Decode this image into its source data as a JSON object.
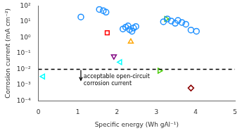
{
  "chart_data": {
    "type": "scatter",
    "xlabel": "Specific energy (Wh gAl⁻¹)",
    "ylabel": "Corrosion current (mA cm⁻²)",
    "log": "y",
    "grid": false,
    "xlim": [
      0,
      5
    ],
    "xticks": [
      0,
      1,
      2,
      3,
      4,
      5
    ],
    "ylim": [
      0.0001,
      100
    ],
    "yticks": [
      {
        "value": 0.0001,
        "label": "10⁻⁴"
      },
      {
        "value": 0.001,
        "label": "10⁻³"
      },
      {
        "value": 0.01,
        "label": "10⁻²"
      },
      {
        "value": 0.1,
        "label": "10⁻¹"
      },
      {
        "value": 1,
        "label": "10⁰"
      },
      {
        "value": 10,
        "label": "10¹"
      },
      {
        "value": 100,
        "label": "10²"
      }
    ],
    "series": [
      {
        "color": "#1e90ff",
        "marker": "circle",
        "x": [
          1.08,
          1.55,
          1.65,
          1.72,
          2.15,
          2.22,
          2.28,
          2.32,
          2.38,
          2.42,
          2.48,
          3.18,
          3.28,
          3.38,
          3.48,
          3.55,
          3.65,
          3.75,
          3.88,
          4.02
        ],
        "values": [
          20,
          60,
          50,
          40,
          3.5,
          4.5,
          5.5,
          3.2,
          2.5,
          4.0,
          5.0,
          10,
          15,
          11,
          8,
          12,
          9,
          7,
          3,
          2.5
        ]
      },
      {
        "color": "red",
        "marker": "square",
        "x": [
          1.75
        ],
        "values": [
          2.0
        ]
      },
      {
        "color": "orange",
        "marker": "triangle_up",
        "x": [
          2.35
        ],
        "values": [
          0.55
        ]
      },
      {
        "color": "purple",
        "marker": "triangle_down",
        "x": [
          1.92
        ],
        "values": [
          0.065
        ]
      },
      {
        "color": "cyan",
        "marker": "triangle_left",
        "x": [
          0.12
        ],
        "values": [
          0.0035
        ]
      },
      {
        "color": "cyan",
        "marker": "triangle_left",
        "x": [
          2.08
        ],
        "values": [
          0.028
        ]
      },
      {
        "color": "#44cc00",
        "marker": "triangle_right",
        "x": [
          3.25
        ],
        "values": [
          15
        ]
      },
      {
        "color": "#44cc00",
        "marker": "triangle_right",
        "x": [
          3.08
        ],
        "values": [
          0.008
        ]
      },
      {
        "color": "#8b0000",
        "marker": "diamond",
        "x": [
          3.88
        ],
        "values": [
          0.00065
        ]
      }
    ],
    "hline": {
      "y": 0.01,
      "color": "black",
      "line_style": "dashed"
    },
    "annotations": [
      {
        "text": "acceptable open-circuit\ncorrosion current",
        "x": 1.15,
        "y": 0.002
      }
    ],
    "arrow": {
      "x": 1.08,
      "y_start": 0.009,
      "y_end": 0.002
    }
  }
}
